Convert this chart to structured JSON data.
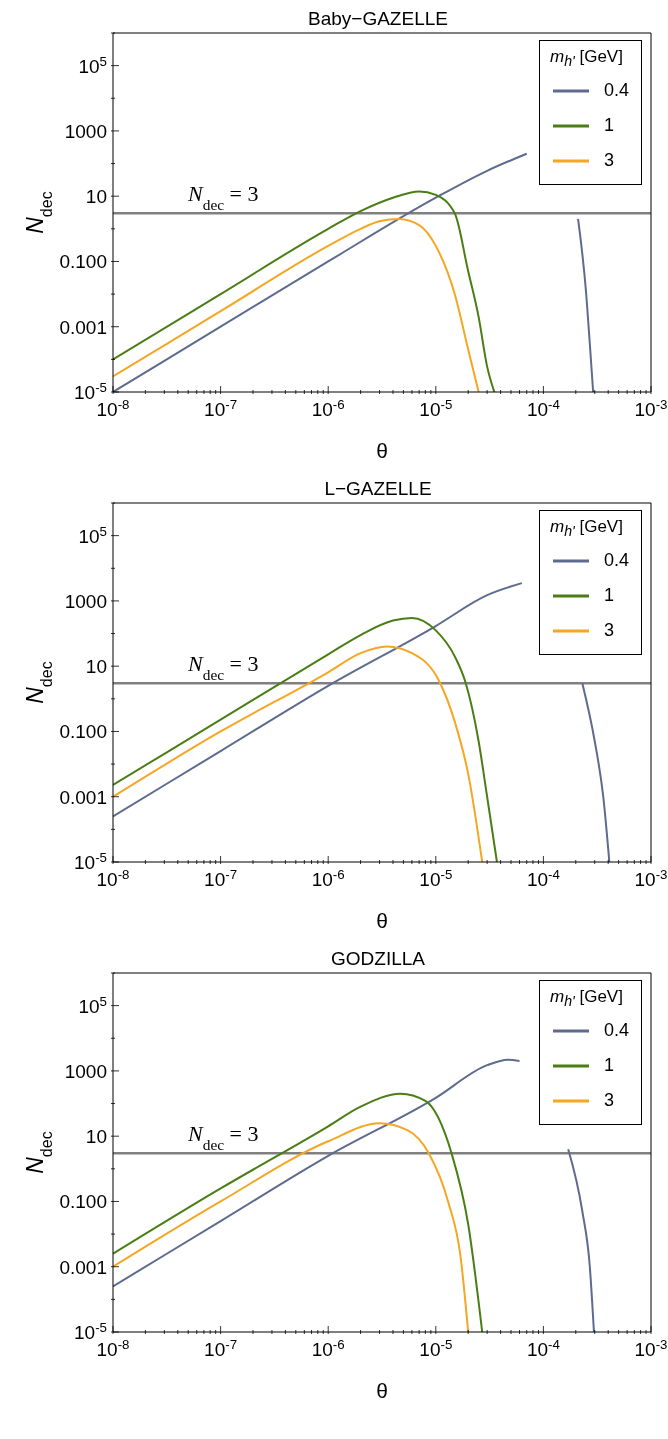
{
  "chart_data": [
    {
      "type": "line",
      "title": "Baby−GAZELLE",
      "xlabel": "θ",
      "ylabel": "N$_{dec}$",
      "legend_title": "m$_{h'}$ [GeV]",
      "legend": "top right",
      "log": "xy",
      "marker": "none",
      "xlim": [
        1e-08,
        0.001
      ],
      "ylim": [
        1e-05,
        1000000
      ],
      "xticks": [
        {
          "value": 1e-08,
          "label": "10$^{-8}$"
        },
        {
          "value": 2e-08,
          "label": null
        },
        {
          "value": 3e-08,
          "label": null
        },
        {
          "value": 4e-08,
          "label": null
        },
        {
          "value": 5e-08,
          "label": null
        },
        {
          "value": 6e-08,
          "label": null
        },
        {
          "value": 7e-08,
          "label": null
        },
        {
          "value": 8e-08,
          "label": null
        },
        {
          "value": 9e-08,
          "label": null
        },
        {
          "value": 1e-07,
          "label": "10$^{-7}$"
        },
        {
          "value": 2e-07,
          "label": null
        },
        {
          "value": 3e-07,
          "label": null
        },
        {
          "value": 4e-07,
          "label": null
        },
        {
          "value": 5e-07,
          "label": null
        },
        {
          "value": 6e-07,
          "label": null
        },
        {
          "value": 7e-07,
          "label": null
        },
        {
          "value": 8e-07,
          "label": null
        },
        {
          "value": 9e-07,
          "label": null
        },
        {
          "value": 1e-06,
          "label": "10$^{-6}$"
        },
        {
          "value": 2e-06,
          "label": null
        },
        {
          "value": 3e-06,
          "label": null
        },
        {
          "value": 4e-06,
          "label": null
        },
        {
          "value": 5e-06,
          "label": null
        },
        {
          "value": 6e-06,
          "label": null
        },
        {
          "value": 7e-06,
          "label": null
        },
        {
          "value": 8e-06,
          "label": null
        },
        {
          "value": 9e-06,
          "label": null
        },
        {
          "value": 1e-05,
          "label": "10$^{-5}$"
        },
        {
          "value": 2e-05,
          "label": null
        },
        {
          "value": 3e-05,
          "label": null
        },
        {
          "value": 4e-05,
          "label": null
        },
        {
          "value": 5e-05,
          "label": null
        },
        {
          "value": 6e-05,
          "label": null
        },
        {
          "value": 7e-05,
          "label": null
        },
        {
          "value": 8e-05,
          "label": null
        },
        {
          "value": 9e-05,
          "label": null
        },
        {
          "value": 0.0001,
          "label": "10$^{-4}$"
        },
        {
          "value": 0.0002,
          "label": null
        },
        {
          "value": 0.0003,
          "label": null
        },
        {
          "value": 0.0004,
          "label": null
        },
        {
          "value": 0.0005,
          "label": null
        },
        {
          "value": 0.0006,
          "label": null
        },
        {
          "value": 0.0007,
          "label": null
        },
        {
          "value": 0.0008,
          "label": null
        },
        {
          "value": 0.0009,
          "label": null
        },
        {
          "value": 0.001,
          "label": "10$^{-3}$"
        }
      ],
      "yticks": [
        {
          "value": 1e-05,
          "label": "10$^{-5}$"
        },
        {
          "value": 0.0001,
          "label": null
        },
        {
          "value": 0.001,
          "label": "0.001"
        },
        {
          "value": 0.01,
          "label": null
        },
        {
          "value": 0.1,
          "label": "0.100"
        },
        {
          "value": 1,
          "label": null
        },
        {
          "value": 10,
          "label": "10"
        },
        {
          "value": 100,
          "label": null
        },
        {
          "value": 1000,
          "label": "1000"
        },
        {
          "value": 10000,
          "label": null
        },
        {
          "value": 100000,
          "label": "10$^{5}$"
        },
        {
          "value": 1000000,
          "label": null
        }
      ],
      "ref_lines": [
        {
          "axis": "y",
          "value": 3,
          "label": "N$_{dec}$ = 3",
          "color": "#808080"
        }
      ],
      "series": [
        {
          "name": "0.4",
          "color": "#5e6b8e",
          "x": [
            1e-08,
            1e-07,
            1e-06,
            1e-05,
            3e-05,
            7e-05,
            0.00012,
            0.00021,
            0.00025,
            0.00027,
            0.00029
          ],
          "values": [
            1e-05,
            0.001,
            0.1,
            9,
            60,
            200,
            null,
            2,
            0.01,
            0.0003,
            1e-05
          ]
        },
        {
          "name": "1",
          "color": "#4a7e14",
          "x": [
            1e-08,
            1e-07,
            1e-06,
            2e-06,
            4e-06,
            7e-06,
            1e-05,
            1.5e-05,
            2e-05,
            2.5e-05,
            3e-05,
            3.5e-05
          ],
          "values": [
            0.0001,
            0.01,
            1,
            3.5,
            9,
            14,
            11,
            3,
            0.05,
            0.002,
            6e-05,
            1e-05
          ]
        },
        {
          "name": "3",
          "color": "#f5a623",
          "x": [
            1e-08,
            1e-07,
            1e-06,
            2e-06,
            3e-06,
            4.5e-06,
            7e-06,
            1e-05,
            1.5e-05,
            2e-05,
            2.5e-05
          ],
          "values": [
            3e-05,
            0.003,
            0.3,
            1,
            1.7,
            2,
            1.3,
            0.3,
            0.01,
            0.0002,
            1e-05
          ]
        }
      ]
    },
    {
      "type": "line",
      "title": "L−GAZELLE",
      "xlabel": "θ",
      "ylabel": "N$_{dec}$",
      "legend_title": "m$_{h'}$ [GeV]",
      "legend": "top right",
      "log": "xy",
      "marker": "none",
      "xlim": [
        1e-08,
        0.001
      ],
      "ylim": [
        1e-05,
        1000000
      ],
      "xticks": [
        {
          "value": 1e-08,
          "label": "10$^{-8}$"
        },
        {
          "value": 2e-08,
          "label": null
        },
        {
          "value": 3e-08,
          "label": null
        },
        {
          "value": 4e-08,
          "label": null
        },
        {
          "value": 5e-08,
          "label": null
        },
        {
          "value": 6e-08,
          "label": null
        },
        {
          "value": 7e-08,
          "label": null
        },
        {
          "value": 8e-08,
          "label": null
        },
        {
          "value": 9e-08,
          "label": null
        },
        {
          "value": 1e-07,
          "label": "10$^{-7}$"
        },
        {
          "value": 2e-07,
          "label": null
        },
        {
          "value": 3e-07,
          "label": null
        },
        {
          "value": 4e-07,
          "label": null
        },
        {
          "value": 5e-07,
          "label": null
        },
        {
          "value": 6e-07,
          "label": null
        },
        {
          "value": 7e-07,
          "label": null
        },
        {
          "value": 8e-07,
          "label": null
        },
        {
          "value": 9e-07,
          "label": null
        },
        {
          "value": 1e-06,
          "label": "10$^{-6}$"
        },
        {
          "value": 2e-06,
          "label": null
        },
        {
          "value": 3e-06,
          "label": null
        },
        {
          "value": 4e-06,
          "label": null
        },
        {
          "value": 5e-06,
          "label": null
        },
        {
          "value": 6e-06,
          "label": null
        },
        {
          "value": 7e-06,
          "label": null
        },
        {
          "value": 8e-06,
          "label": null
        },
        {
          "value": 9e-06,
          "label": null
        },
        {
          "value": 1e-05,
          "label": "10$^{-5}$"
        },
        {
          "value": 2e-05,
          "label": null
        },
        {
          "value": 3e-05,
          "label": null
        },
        {
          "value": 4e-05,
          "label": null
        },
        {
          "value": 5e-05,
          "label": null
        },
        {
          "value": 6e-05,
          "label": null
        },
        {
          "value": 7e-05,
          "label": null
        },
        {
          "value": 8e-05,
          "label": null
        },
        {
          "value": 9e-05,
          "label": null
        },
        {
          "value": 0.0001,
          "label": "10$^{-4}$"
        },
        {
          "value": 0.0002,
          "label": null
        },
        {
          "value": 0.0003,
          "label": null
        },
        {
          "value": 0.0004,
          "label": null
        },
        {
          "value": 0.0005,
          "label": null
        },
        {
          "value": 0.0006,
          "label": null
        },
        {
          "value": 0.0007,
          "label": null
        },
        {
          "value": 0.0008,
          "label": null
        },
        {
          "value": 0.0009,
          "label": null
        },
        {
          "value": 0.001,
          "label": "10$^{-3}$"
        }
      ],
      "yticks": [
        {
          "value": 1e-05,
          "label": "10$^{-5}$"
        },
        {
          "value": 0.0001,
          "label": null
        },
        {
          "value": 0.001,
          "label": "0.001"
        },
        {
          "value": 0.01,
          "label": null
        },
        {
          "value": 0.1,
          "label": "0.100"
        },
        {
          "value": 1,
          "label": null
        },
        {
          "value": 10,
          "label": "10"
        },
        {
          "value": 100,
          "label": null
        },
        {
          "value": 1000,
          "label": "1000"
        },
        {
          "value": 10000,
          "label": null
        },
        {
          "value": 100000,
          "label": "10$^{5}$"
        },
        {
          "value": 1000000,
          "label": null
        }
      ],
      "ref_lines": [
        {
          "axis": "y",
          "value": 3,
          "label": "N$_{dec}$ = 3",
          "color": "#808080"
        }
      ],
      "series": [
        {
          "name": "0.4",
          "color": "#5e6b8e",
          "x": [
            1e-08,
            1e-07,
            1e-06,
            1e-05,
            3e-05,
            6.3e-05,
            0.00012,
            0.00023,
            0.0003,
            0.00036,
            0.00041
          ],
          "values": [
            0.00025,
            0.025,
            2.5,
            170,
            1500,
            3500,
            null,
            3,
            0.05,
            0.001,
            1e-05
          ]
        },
        {
          "name": "1",
          "color": "#4a7e14",
          "x": [
            1e-08,
            1e-07,
            1e-06,
            2e-06,
            4e-06,
            6e-06,
            1e-05,
            1.5e-05,
            1.9e-05,
            2.5e-05,
            3e-05,
            3.7e-05
          ],
          "values": [
            0.0023,
            0.23,
            23,
            90,
            250,
            300,
            125,
            20,
            3,
            0.05,
            0.001,
            1e-05
          ]
        },
        {
          "name": "3",
          "color": "#f5a623",
          "x": [
            1e-08,
            1e-07,
            1e-06,
            2e-06,
            3.5e-06,
            6e-06,
            1.1e-05,
            1.5e-05,
            2e-05,
            2.7e-05
          ],
          "values": [
            0.001,
            0.1,
            6.5,
            25,
            40,
            25,
            3,
            0.2,
            0.005,
            1e-05
          ]
        }
      ]
    },
    {
      "type": "line",
      "title": "GODZILLA",
      "xlabel": "θ",
      "ylabel": "N$_{dec}$",
      "legend_title": "m$_{h'}$ [GeV]",
      "legend": "top right",
      "log": "xy",
      "marker": "none",
      "xlim": [
        1e-08,
        0.001
      ],
      "ylim": [
        1e-05,
        1000000
      ],
      "xticks": [
        {
          "value": 1e-08,
          "label": "10$^{-8}$"
        },
        {
          "value": 2e-08,
          "label": null
        },
        {
          "value": 3e-08,
          "label": null
        },
        {
          "value": 4e-08,
          "label": null
        },
        {
          "value": 5e-08,
          "label": null
        },
        {
          "value": 6e-08,
          "label": null
        },
        {
          "value": 7e-08,
          "label": null
        },
        {
          "value": 8e-08,
          "label": null
        },
        {
          "value": 9e-08,
          "label": null
        },
        {
          "value": 1e-07,
          "label": "10$^{-7}$"
        },
        {
          "value": 2e-07,
          "label": null
        },
        {
          "value": 3e-07,
          "label": null
        },
        {
          "value": 4e-07,
          "label": null
        },
        {
          "value": 5e-07,
          "label": null
        },
        {
          "value": 6e-07,
          "label": null
        },
        {
          "value": 7e-07,
          "label": null
        },
        {
          "value": 8e-07,
          "label": null
        },
        {
          "value": 9e-07,
          "label": null
        },
        {
          "value": 1e-06,
          "label": "10$^{-6}$"
        },
        {
          "value": 2e-06,
          "label": null
        },
        {
          "value": 3e-06,
          "label": null
        },
        {
          "value": 4e-06,
          "label": null
        },
        {
          "value": 5e-06,
          "label": null
        },
        {
          "value": 6e-06,
          "label": null
        },
        {
          "value": 7e-06,
          "label": null
        },
        {
          "value": 8e-06,
          "label": null
        },
        {
          "value": 9e-06,
          "label": null
        },
        {
          "value": 1e-05,
          "label": "10$^{-5}$"
        },
        {
          "value": 2e-05,
          "label": null
        },
        {
          "value": 3e-05,
          "label": null
        },
        {
          "value": 4e-05,
          "label": null
        },
        {
          "value": 5e-05,
          "label": null
        },
        {
          "value": 6e-05,
          "label": null
        },
        {
          "value": 7e-05,
          "label": null
        },
        {
          "value": 8e-05,
          "label": null
        },
        {
          "value": 9e-05,
          "label": null
        },
        {
          "value": 0.0001,
          "label": "10$^{-4}$"
        },
        {
          "value": 0.0002,
          "label": null
        },
        {
          "value": 0.0003,
          "label": null
        },
        {
          "value": 0.0004,
          "label": null
        },
        {
          "value": 0.0005,
          "label": null
        },
        {
          "value": 0.0006,
          "label": null
        },
        {
          "value": 0.0007,
          "label": null
        },
        {
          "value": 0.0008,
          "label": null
        },
        {
          "value": 0.0009,
          "label": null
        },
        {
          "value": 0.001,
          "label": "10$^{-3}$"
        }
      ],
      "yticks": [
        {
          "value": 1e-05,
          "label": "10$^{-5}$"
        },
        {
          "value": 0.0001,
          "label": null
        },
        {
          "value": 0.001,
          "label": "0.001"
        },
        {
          "value": 0.01,
          "label": null
        },
        {
          "value": 0.1,
          "label": "0.100"
        },
        {
          "value": 1,
          "label": null
        },
        {
          "value": 10,
          "label": "10"
        },
        {
          "value": 100,
          "label": null
        },
        {
          "value": 1000,
          "label": "1000"
        },
        {
          "value": 10000,
          "label": null
        },
        {
          "value": 100000,
          "label": "10$^{5}$"
        },
        {
          "value": 1000000,
          "label": null
        }
      ],
      "ref_lines": [
        {
          "axis": "y",
          "value": 3,
          "label": "N$_{dec}$ = 3",
          "color": "#808080"
        }
      ],
      "series": [
        {
          "name": "0.4",
          "color": "#5e6b8e",
          "x": [
            1e-08,
            1e-07,
            1e-06,
            1e-05,
            3e-05,
            4.7e-05,
            6e-05,
            0.0001,
            0.00017,
            0.00023,
            0.00027,
            0.000295
          ],
          "values": [
            0.00025,
            0.025,
            2.5,
            150,
            1500,
            2200,
            2000,
            null,
            4,
            0.05,
            0.001,
            1e-05
          ]
        },
        {
          "name": "1",
          "color": "#4a7e14",
          "x": [
            1e-08,
            1e-07,
            1e-06,
            2e-06,
            4.7e-06,
            8e-06,
            1.4e-05,
            2e-05,
            2.7e-05
          ],
          "values": [
            0.0025,
            0.25,
            20,
            80,
            200,
            120,
            3,
            0.02,
            1e-05
          ]
        },
        {
          "name": "3",
          "color": "#f5a623",
          "x": [
            1e-08,
            1e-07,
            1e-06,
            3e-06,
            5.5e-06,
            8.6e-06,
            1.3e-05,
            1.7e-05,
            2e-05
          ],
          "values": [
            0.001,
            0.1,
            7,
            25,
            15,
            3,
            0.1,
            0.002,
            1e-05
          ]
        }
      ]
    }
  ]
}
